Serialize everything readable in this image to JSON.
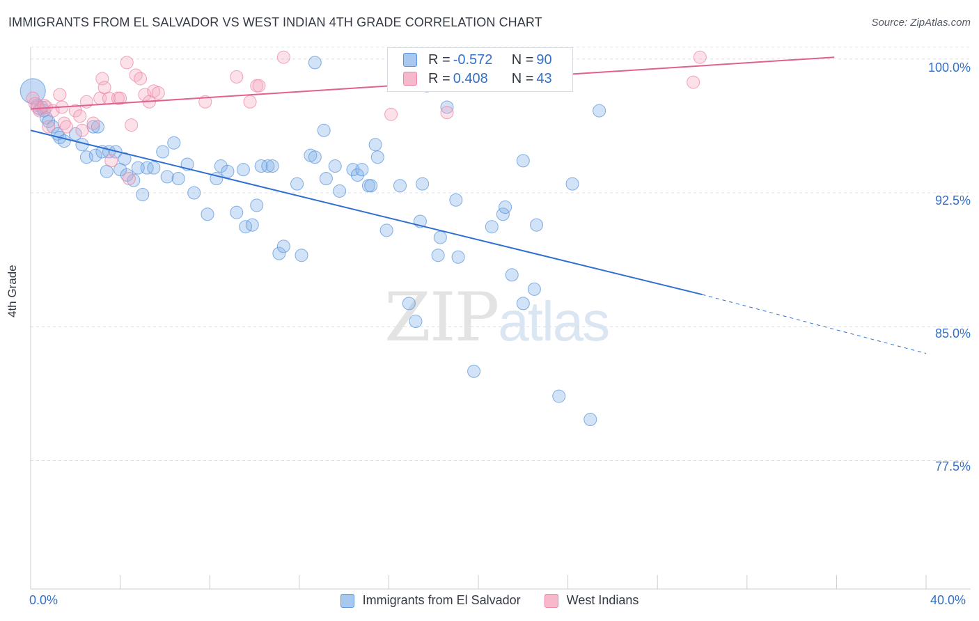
{
  "header": {
    "title": "IMMIGRANTS FROM EL SALVADOR VS WEST INDIAN 4TH GRADE CORRELATION CHART",
    "source": "Source: ZipAtlas.com"
  },
  "legend_box": {
    "rows": [
      {
        "r_label": "R = ",
        "r_value": "-0.572",
        "n_label": "N = ",
        "n_value": "90",
        "color": "#a8c8f0"
      },
      {
        "r_label": "R = ",
        "r_value": "0.408",
        "n_label": "N = ",
        "n_value": "43",
        "color": "#f7b8cb"
      }
    ]
  },
  "watermark": {
    "zip": "ZIP",
    "atlas": "atlas"
  },
  "axes": {
    "x_min_label": "0.0%",
    "x_max_label": "40.0%",
    "y_tick_labels": [
      "100.0%",
      "92.5%",
      "85.0%",
      "77.5%"
    ],
    "ylabel": "4th Grade"
  },
  "bottom_legend": [
    {
      "label": "Immigrants from El Salvador",
      "color": "#a8c8f0"
    },
    {
      "label": "West Indians",
      "color": "#f7b8cb"
    }
  ],
  "chart_data": {
    "type": "scatter",
    "title": "IMMIGRANTS FROM EL SALVADOR VS WEST INDIAN 4TH GRADE CORRELATION CHART",
    "xlabel": "",
    "ylabel": "4th Grade",
    "xlim": [
      0,
      40
    ],
    "ylim": [
      70.3,
      101.2
    ],
    "y_ticks": [
      100.0,
      92.5,
      85.0,
      77.5
    ],
    "grid": true,
    "series": [
      {
        "name": "Immigrants from El Salvador",
        "color": "#7fb0e8",
        "stroke": "#5b96dc",
        "trend": {
          "x": [
            0,
            30.0
          ],
          "y": [
            96.0,
            86.8
          ],
          "dashed_to": [
            40.0,
            83.5
          ],
          "color": "#2f6fcf"
        },
        "points": [
          [
            0.1,
            98.2
          ],
          [
            0.3,
            97.4
          ],
          [
            0.4,
            97.2
          ],
          [
            0.5,
            97.3
          ],
          [
            0.6,
            97.1
          ],
          [
            0.7,
            96.7
          ],
          [
            0.8,
            96.5
          ],
          [
            1.0,
            96.2
          ],
          [
            1.2,
            95.8
          ],
          [
            1.3,
            95.6
          ],
          [
            1.5,
            95.4
          ],
          [
            2.0,
            95.8
          ],
          [
            2.3,
            95.2
          ],
          [
            2.8,
            96.2
          ],
          [
            2.5,
            94.5
          ],
          [
            2.9,
            94.6
          ],
          [
            3.2,
            94.8
          ],
          [
            3.5,
            94.8
          ],
          [
            3.8,
            94.8
          ],
          [
            4.2,
            94.4
          ],
          [
            3.4,
            93.7
          ],
          [
            4.0,
            93.8
          ],
          [
            4.8,
            93.9
          ],
          [
            5.2,
            93.9
          ],
          [
            5.5,
            93.9
          ],
          [
            4.6,
            93.2
          ],
          [
            5.0,
            92.4
          ],
          [
            5.9,
            94.8
          ],
          [
            6.4,
            95.3
          ],
          [
            6.1,
            93.4
          ],
          [
            6.6,
            93.3
          ],
          [
            7.0,
            94.1
          ],
          [
            7.3,
            92.5
          ],
          [
            7.9,
            91.3
          ],
          [
            8.3,
            93.3
          ],
          [
            8.5,
            94.0
          ],
          [
            8.8,
            93.7
          ],
          [
            9.2,
            91.4
          ],
          [
            9.5,
            93.8
          ],
          [
            9.6,
            90.6
          ],
          [
            9.9,
            90.7
          ],
          [
            10.1,
            91.8
          ],
          [
            10.3,
            94.0
          ],
          [
            10.6,
            94.0
          ],
          [
            10.8,
            94.0
          ],
          [
            11.1,
            89.1
          ],
          [
            11.3,
            89.5
          ],
          [
            11.9,
            93.0
          ],
          [
            12.1,
            89.0
          ],
          [
            12.5,
            94.6
          ],
          [
            12.7,
            94.5
          ],
          [
            13.1,
            96.0
          ],
          [
            13.2,
            93.3
          ],
          [
            13.6,
            94.0
          ],
          [
            13.8,
            92.6
          ],
          [
            14.4,
            93.8
          ],
          [
            14.6,
            93.5
          ],
          [
            14.8,
            93.8
          ],
          [
            15.1,
            92.9
          ],
          [
            15.4,
            95.2
          ],
          [
            15.5,
            94.5
          ],
          [
            15.2,
            92.9
          ],
          [
            15.9,
            90.4
          ],
          [
            16.5,
            92.9
          ],
          [
            16.9,
            86.3
          ],
          [
            17.2,
            85.3
          ],
          [
            17.4,
            90.9
          ],
          [
            17.5,
            93.0
          ],
          [
            17.7,
            98.5
          ],
          [
            18.2,
            89.0
          ],
          [
            18.3,
            90.0
          ],
          [
            18.6,
            97.3
          ],
          [
            19.0,
            92.1
          ],
          [
            19.1,
            88.9
          ],
          [
            19.8,
            82.5
          ],
          [
            20.6,
            90.6
          ],
          [
            21.1,
            91.3
          ],
          [
            21.2,
            91.7
          ],
          [
            21.5,
            87.9
          ],
          [
            22.0,
            86.3
          ],
          [
            22.0,
            94.3
          ],
          [
            22.5,
            87.1
          ],
          [
            22.6,
            90.7
          ],
          [
            23.6,
            81.1
          ],
          [
            24.2,
            93.0
          ],
          [
            25.0,
            79.8
          ],
          [
            25.4,
            97.1
          ],
          [
            12.7,
            99.8
          ],
          [
            4.3,
            93.5
          ],
          [
            3.0,
            96.2
          ]
        ]
      },
      {
        "name": "West Indians",
        "color": "#f5a8c0",
        "stroke": "#ec85a6",
        "trend": {
          "x": [
            0,
            35.9
          ],
          "y": [
            97.2,
            100.1
          ],
          "color": "#e06090"
        },
        "points": [
          [
            0.1,
            97.8
          ],
          [
            0.2,
            97.5
          ],
          [
            0.3,
            97.3
          ],
          [
            0.4,
            97.1
          ],
          [
            0.6,
            97.4
          ],
          [
            0.7,
            97.3
          ],
          [
            0.8,
            96.2
          ],
          [
            1.0,
            97.1
          ],
          [
            1.3,
            98.0
          ],
          [
            1.5,
            96.4
          ],
          [
            1.6,
            96.2
          ],
          [
            2.0,
            97.1
          ],
          [
            2.2,
            96.8
          ],
          [
            2.3,
            96.0
          ],
          [
            2.5,
            97.6
          ],
          [
            2.8,
            96.4
          ],
          [
            3.1,
            97.8
          ],
          [
            3.2,
            98.9
          ],
          [
            3.3,
            98.4
          ],
          [
            3.5,
            97.8
          ],
          [
            3.6,
            94.3
          ],
          [
            3.9,
            97.8
          ],
          [
            4.0,
            97.8
          ],
          [
            4.3,
            99.8
          ],
          [
            4.4,
            93.3
          ],
          [
            4.5,
            96.3
          ],
          [
            4.7,
            99.1
          ],
          [
            4.9,
            98.9
          ],
          [
            5.1,
            98.0
          ],
          [
            5.3,
            97.6
          ],
          [
            5.5,
            98.2
          ],
          [
            5.7,
            98.1
          ],
          [
            7.8,
            97.6
          ],
          [
            9.2,
            99.0
          ],
          [
            9.8,
            97.6
          ],
          [
            10.1,
            98.5
          ],
          [
            10.2,
            98.5
          ],
          [
            11.3,
            100.1
          ],
          [
            16.1,
            96.9
          ],
          [
            18.6,
            97.0
          ],
          [
            29.9,
            100.1
          ],
          [
            29.6,
            98.7
          ],
          [
            1.4,
            97.3
          ]
        ]
      }
    ]
  }
}
